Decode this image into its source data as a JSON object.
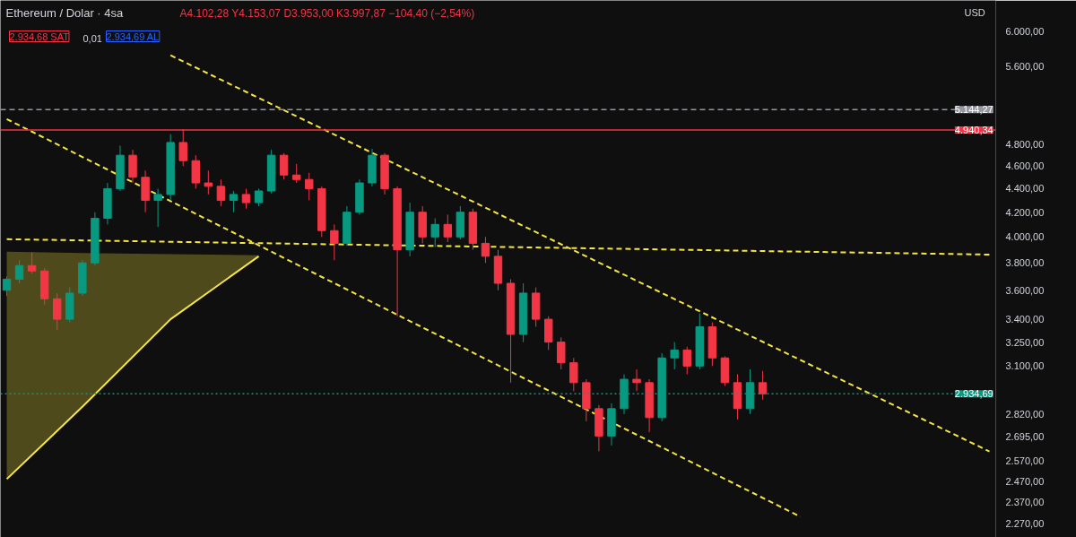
{
  "chart_data": {
    "type": "candlestick",
    "title": "Ethereum / Dolar · 4sa",
    "subtitle": "A4.102,28 Y4.153,07 D3.953,00 K3.997,87 −104,40 (−2,54%)",
    "annotations": [
      "2.934,68 SAT",
      "0,01",
      "2.934,69 AL",
      "USD"
    ],
    "categories": [
      null,
      null,
      null,
      null,
      null,
      null,
      null,
      null,
      null,
      null,
      null,
      null,
      null,
      null,
      null,
      null,
      null,
      null,
      null,
      null,
      null,
      null,
      null,
      null,
      null,
      null,
      null,
      null,
      null,
      null,
      null,
      null,
      null,
      null,
      null,
      null,
      null,
      null,
      null,
      null,
      null,
      null,
      null,
      null,
      null,
      null,
      null,
      null,
      null,
      null,
      null,
      null,
      null,
      null,
      null,
      null,
      null,
      null,
      null,
      null,
      null,
      null,
      null,
      null,
      null,
      null,
      null,
      null,
      null,
      null,
      null,
      null,
      null,
      null,
      null,
      null,
      null,
      null,
      null
    ],
    "ohlc": [
      [
        3600,
        3700,
        3560,
        3680
      ],
      [
        3680,
        3820,
        3650,
        3780
      ],
      [
        3780,
        3880,
        3720,
        3740
      ],
      [
        3740,
        3760,
        3500,
        3540
      ],
      [
        3540,
        3580,
        3330,
        3400
      ],
      [
        3400,
        3620,
        3380,
        3580
      ],
      [
        3580,
        3820,
        3560,
        3800
      ],
      [
        3800,
        4200,
        3780,
        4150
      ],
      [
        4150,
        4450,
        4100,
        4400
      ],
      [
        4400,
        4790,
        4380,
        4700
      ],
      [
        4700,
        4750,
        4450,
        4500
      ],
      [
        4500,
        4560,
        4200,
        4300
      ],
      [
        4300,
        4400,
        4080,
        4350
      ],
      [
        4350,
        4900,
        4300,
        4820
      ],
      [
        4820,
        4950,
        4600,
        4650
      ],
      [
        4650,
        4700,
        4400,
        4450
      ],
      [
        4450,
        4560,
        4350,
        4420
      ],
      [
        4420,
        4480,
        4250,
        4300
      ],
      [
        4300,
        4380,
        4200,
        4350
      ],
      [
        4350,
        4400,
        4230,
        4280
      ],
      [
        4280,
        4400,
        4250,
        4380
      ],
      [
        4380,
        4750,
        4360,
        4700
      ],
      [
        4700,
        4720,
        4480,
        4520
      ],
      [
        4520,
        4620,
        4450,
        4480
      ],
      [
        4480,
        4540,
        4300,
        4400
      ],
      [
        4400,
        4420,
        4000,
        4050
      ],
      [
        4050,
        4100,
        3820,
        3950
      ],
      [
        3950,
        4250,
        3930,
        4200
      ],
      [
        4200,
        4480,
        4180,
        4450
      ],
      [
        4450,
        4760,
        4420,
        4700
      ],
      [
        4700,
        4720,
        4350,
        4400
      ],
      [
        4400,
        4420,
        3420,
        3900
      ],
      [
        3900,
        4280,
        3850,
        4200
      ],
      [
        4200,
        4250,
        3950,
        4000
      ],
      [
        4000,
        4150,
        3920,
        4100
      ],
      [
        4100,
        4180,
        3960,
        4000
      ],
      [
        4000,
        4250,
        3980,
        4200
      ],
      [
        4200,
        4230,
        3900,
        3950
      ],
      [
        3950,
        4000,
        3800,
        3850
      ],
      [
        3850,
        3900,
        3600,
        3650
      ],
      [
        3650,
        3680,
        3000,
        3300
      ],
      [
        3300,
        3650,
        3250,
        3580
      ],
      [
        3580,
        3620,
        3350,
        3400
      ],
      [
        3400,
        3420,
        3200,
        3250
      ],
      [
        3250,
        3280,
        3080,
        3120
      ],
      [
        3120,
        3150,
        2950,
        3000
      ],
      [
        3000,
        3020,
        2780,
        2850
      ],
      [
        2850,
        2870,
        2620,
        2700
      ],
      [
        2700,
        2880,
        2650,
        2850
      ],
      [
        2850,
        3050,
        2820,
        3020
      ],
      [
        3020,
        3080,
        2950,
        3000
      ],
      [
        3000,
        3020,
        2720,
        2800
      ],
      [
        2800,
        3180,
        2780,
        3150
      ],
      [
        3150,
        3250,
        3080,
        3200
      ],
      [
        3200,
        3220,
        3050,
        3100
      ],
      [
        3100,
        3440,
        3080,
        3350
      ],
      [
        3350,
        3380,
        3100,
        3150
      ],
      [
        3150,
        3160,
        2980,
        3000
      ],
      [
        3000,
        3050,
        2790,
        2850
      ],
      [
        2850,
        3080,
        2820,
        3000
      ],
      [
        3000,
        3070,
        2900,
        2934.69
      ],
      null,
      null,
      null,
      null,
      null,
      null,
      null,
      null,
      null,
      null,
      null,
      null,
      null,
      null,
      null,
      null,
      null,
      null
    ],
    "colors": [
      "#089981",
      "#089981",
      "#f23645",
      "#f23645",
      "#f23645",
      "#089981",
      "#089981",
      "#089981",
      "#089981",
      "#089981",
      "#f23645",
      "#f23645",
      "#089981",
      "#089981",
      "#f23645",
      "#f23645",
      "#f23645",
      "#f23645",
      "#089981",
      "#f23645",
      "#089981",
      "#089981",
      "#f23645",
      "#f23645",
      "#f23645",
      "#f23645",
      "#f23645",
      "#089981",
      "#089981",
      "#089981",
      "#f23645",
      "#f23645",
      "#089981",
      "#f23645",
      "#089981",
      "#f23645",
      "#089981",
      "#f23645",
      "#f23645",
      "#f23645",
      "#f23645",
      "#089981",
      "#f23645",
      "#f23645",
      "#f23645",
      "#f23645",
      "#f23645",
      "#f23645",
      "#089981",
      "#089981",
      "#f23645",
      "#f23645",
      "#089981",
      "#089981",
      "#f23645",
      "#089981",
      "#f23645",
      "#f23645",
      "#f23645",
      "#089981",
      "#f23645",
      null,
      null,
      null,
      null,
      null,
      null,
      null,
      null,
      null,
      null,
      null,
      null,
      null,
      null,
      null,
      null,
      null,
      null
    ],
    "series": [
      {
        "type": "line",
        "values": [
          null,
          null,
          null,
          null,
          null,
          null,
          null,
          null,
          null,
          null,
          null,
          null,
          null,
          5725,
          null,
          null,
          null,
          null,
          null,
          null,
          null,
          null,
          null,
          null,
          null,
          null,
          null,
          null,
          null,
          null,
          null,
          null,
          null,
          null,
          null,
          null,
          null,
          null,
          null,
          null,
          null,
          null,
          null,
          null,
          null,
          null,
          null,
          null,
          null,
          null,
          null,
          null,
          null,
          null,
          null,
          null,
          null,
          null,
          null,
          null,
          null,
          null,
          null,
          null,
          null,
          null,
          null,
          null,
          null,
          null,
          null,
          null,
          null,
          null,
          null,
          null,
          null,
          null,
          2619
        ],
        "color": "#f5e642",
        "line_style": "dashed"
      },
      {
        "type": "line",
        "values": [
          5048,
          null,
          null,
          null,
          null,
          null,
          null,
          null,
          null,
          null,
          null,
          null,
          null,
          null,
          null,
          null,
          null,
          null,
          null,
          null,
          null,
          null,
          null,
          null,
          null,
          null,
          null,
          null,
          null,
          null,
          null,
          null,
          null,
          null,
          null,
          null,
          null,
          null,
          null,
          null,
          null,
          null,
          null,
          null,
          null,
          null,
          null,
          null,
          null,
          null,
          null,
          null,
          null,
          null,
          null,
          null,
          null,
          null,
          null,
          null,
          null,
          null,
          null,
          2302,
          null,
          null,
          null,
          null,
          null,
          null,
          null,
          null,
          null,
          null,
          null,
          null,
          null,
          null,
          null
        ],
        "color": "#f5e642",
        "line_style": "dashed"
      },
      {
        "type": "line",
        "values": [
          3982,
          null,
          null,
          null,
          null,
          null,
          null,
          null,
          null,
          null,
          null,
          null,
          null,
          null,
          null,
          null,
          null,
          null,
          null,
          null,
          null,
          null,
          null,
          null,
          null,
          null,
          null,
          null,
          null,
          null,
          null,
          null,
          null,
          null,
          null,
          null,
          null,
          null,
          null,
          null,
          null,
          null,
          null,
          null,
          null,
          null,
          null,
          null,
          null,
          null,
          null,
          null,
          null,
          null,
          null,
          null,
          null,
          null,
          null,
          null,
          null,
          null,
          null,
          null,
          null,
          null,
          null,
          null,
          null,
          null,
          null,
          null,
          null,
          null,
          null,
          null,
          null,
          null,
          3863
        ],
        "color": "#f5e642",
        "line_style": "dashed"
      },
      {
        "type": "line",
        "upper": [
          3885,
          null,
          null,
          null,
          null,
          null,
          3875,
          null,
          null,
          null,
          null,
          null,
          null,
          3866,
          null,
          null,
          null,
          null,
          null,
          null,
          3858,
          null,
          null,
          null,
          null,
          null,
          null,
          null,
          null,
          null,
          null,
          null,
          null,
          null,
          null,
          null,
          null,
          null,
          null,
          null,
          null,
          null,
          null,
          null,
          null,
          null,
          null,
          null,
          null,
          null,
          null,
          null,
          null,
          null,
          null,
          null,
          null,
          null,
          null,
          null,
          null,
          null,
          null,
          null,
          null,
          null,
          null,
          null,
          null,
          null,
          null,
          null,
          null,
          null,
          null,
          null,
          null,
          null,
          null
        ],
        "lower": [
          2480,
          null,
          null,
          null,
          null,
          null,
          2860,
          null,
          null,
          null,
          null,
          null,
          null,
          3400,
          null,
          null,
          null,
          null,
          null,
          null,
          3850,
          null,
          null,
          null,
          null,
          null,
          null,
          null,
          null,
          null,
          null,
          null,
          null,
          null,
          null,
          null,
          null,
          null,
          null,
          null,
          null,
          null,
          null,
          null,
          null,
          null,
          null,
          null,
          null,
          null,
          null,
          null,
          null,
          null,
          null,
          null,
          null,
          null,
          null,
          null,
          null,
          null,
          null,
          null,
          null,
          null,
          null,
          null,
          null,
          null,
          null,
          null,
          null,
          null,
          null,
          null,
          null,
          null,
          null
        ],
        "values": [
          2480,
          null,
          null,
          null,
          null,
          null,
          2860,
          null,
          null,
          null,
          null,
          null,
          null,
          3400,
          null,
          null,
          null,
          null,
          null,
          null,
          3850,
          null,
          null,
          null,
          null,
          null,
          null,
          null,
          null,
          null,
          null,
          null,
          null,
          null,
          null,
          null,
          null,
          null,
          null,
          null,
          null,
          null,
          null,
          null,
          null,
          null,
          null,
          null,
          null,
          null,
          null,
          null,
          null,
          null,
          null,
          null,
          null,
          null,
          null,
          null,
          null,
          null,
          null,
          null,
          null,
          null,
          null,
          null,
          null,
          null,
          null,
          null,
          null,
          null,
          null,
          null,
          null,
          null,
          null
        ],
        "color": "#f5e642",
        "line_style": "solid"
      }
    ],
    "ref_lines": [
      {
        "axis": "y",
        "value": 5144.27,
        "label": "5.144,27",
        "color": "#9598a1",
        "line_style": "dashed"
      },
      {
        "axis": "y",
        "value": 4940.34,
        "label": "4.940,34",
        "color": "#f23645",
        "line_style": "solid"
      },
      {
        "axis": "y",
        "value": 2934.69,
        "label": "2.934,69",
        "color": "#089981",
        "line_style": "dotted"
      }
    ],
    "log": true,
    "grid": false,
    "tick_labels": "y",
    "ylim": [
      2210,
      6380
    ],
    "yticks": [
      {
        "value": 6000,
        "label": "6.000,00"
      },
      {
        "value": 5600,
        "label": "5.600,00"
      },
      {
        "value": 4800,
        "label": "4.800,00"
      },
      {
        "value": 4600,
        "label": "4.600,00"
      },
      {
        "value": 4400,
        "label": "4.400,00"
      },
      {
        "value": 4200,
        "label": "4.200,00"
      },
      {
        "value": 4000,
        "label": "4.000,00"
      },
      {
        "value": 3800,
        "label": "3.800,00"
      },
      {
        "value": 3600,
        "label": "3.600,00"
      },
      {
        "value": 3400,
        "label": "3.400,00"
      },
      {
        "value": 3250,
        "label": "3.250,00"
      },
      {
        "value": 3100,
        "label": "3.100,00"
      },
      {
        "value": 2820,
        "label": "2.820,00"
      },
      {
        "value": 2695,
        "label": "2.695,00"
      },
      {
        "value": 2570,
        "label": "2.570,00"
      },
      {
        "value": 2470,
        "label": "2.470,00"
      },
      {
        "value": 2370,
        "label": "2.370,00"
      },
      {
        "value": 2270,
        "label": "2.270,00"
      }
    ]
  }
}
